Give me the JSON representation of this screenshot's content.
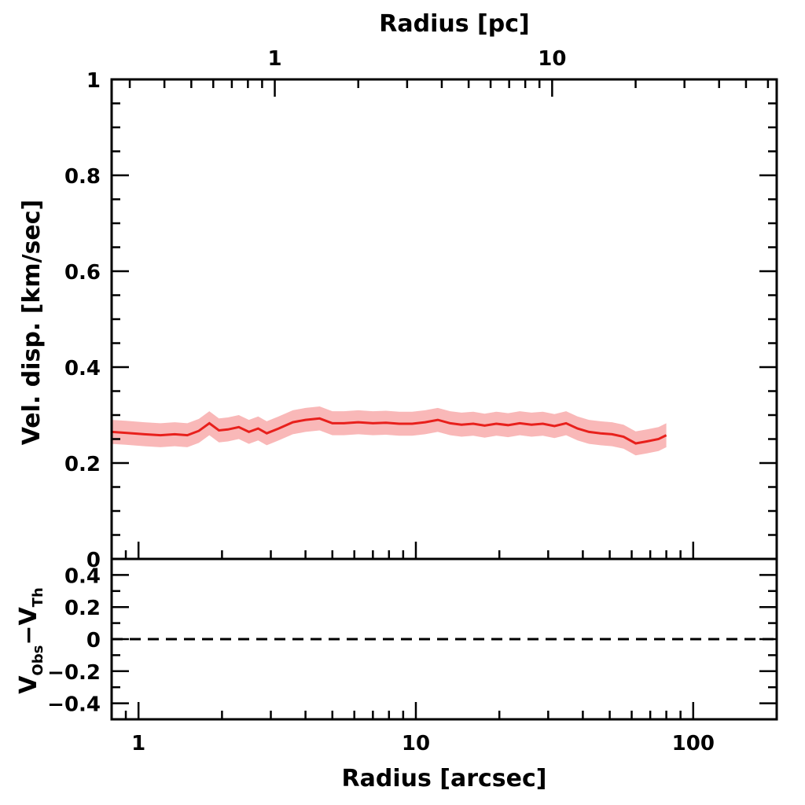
{
  "chart_data": [
    {
      "type": "line",
      "panel": "top",
      "x_scale": "log",
      "xlim": [
        0.8,
        200
      ],
      "ylim": [
        0,
        1
      ],
      "xlabel": "Radius [arcsec]",
      "xlabel_top": "Radius [pc]",
      "ylabel": "Vel. disp. [km/sec]",
      "x_ticks": [
        "1",
        "10",
        "100"
      ],
      "x_ticks_top": [
        "1",
        "10"
      ],
      "x_ticks_top_values": [
        3.1,
        31
      ],
      "y_ticks": [
        "0",
        "0.2",
        "0.4",
        "0.6",
        "0.8",
        "1"
      ],
      "y_tick_values": [
        0,
        0.2,
        0.4,
        0.6,
        0.8,
        1
      ],
      "band_halfwidth": 0.025,
      "line_color": "#e8201c",
      "band_color": "#f9b8b8",
      "series": [
        {
          "x": [
            0.8,
            0.9,
            1.05,
            1.2,
            1.35,
            1.5,
            1.65,
            1.8,
            1.95,
            2.1,
            2.3,
            2.5,
            2.7,
            2.9,
            3.2,
            3.6,
            4.0,
            4.5,
            5.0,
            5.5,
            6.2,
            7.0,
            7.8,
            8.7,
            9.7,
            10.8,
            12.0,
            13.3,
            14.6,
            16.1,
            17.7,
            19.5,
            21.5,
            23.7,
            26.1,
            28.7,
            31.6,
            34.8,
            38.3,
            42.1,
            46.3,
            51.0,
            56.1,
            62.0,
            68.0,
            75.0,
            80.0
          ],
          "y": [
            0.265,
            0.263,
            0.26,
            0.258,
            0.26,
            0.258,
            0.267,
            0.283,
            0.268,
            0.27,
            0.275,
            0.265,
            0.272,
            0.262,
            0.272,
            0.285,
            0.29,
            0.293,
            0.283,
            0.283,
            0.285,
            0.283,
            0.284,
            0.282,
            0.282,
            0.285,
            0.29,
            0.283,
            0.28,
            0.282,
            0.278,
            0.282,
            0.279,
            0.283,
            0.28,
            0.282,
            0.277,
            0.283,
            0.272,
            0.265,
            0.262,
            0.26,
            0.255,
            0.241,
            0.245,
            0.25,
            0.258
          ]
        }
      ]
    },
    {
      "type": "line",
      "panel": "bottom",
      "x_scale": "log",
      "xlim": [
        0.8,
        200
      ],
      "ylim": [
        -0.5,
        0.5
      ],
      "xlabel": "Radius [arcsec]",
      "ylabel": "V",
      "ylabel_sub_1": "Obs",
      "ylabel_minus": "−",
      "ylabel_tail": "V",
      "ylabel_sub_2": "Th",
      "x_ticks": [
        "1",
        "10",
        "100"
      ],
      "y_ticks": [
        "−0.4",
        "−0.2",
        "0",
        "0.2",
        "0.4"
      ],
      "y_tick_values": [
        -0.4,
        -0.2,
        0,
        0.2,
        0.4
      ],
      "reference_line": {
        "y": 0,
        "style": "dashed"
      }
    }
  ]
}
